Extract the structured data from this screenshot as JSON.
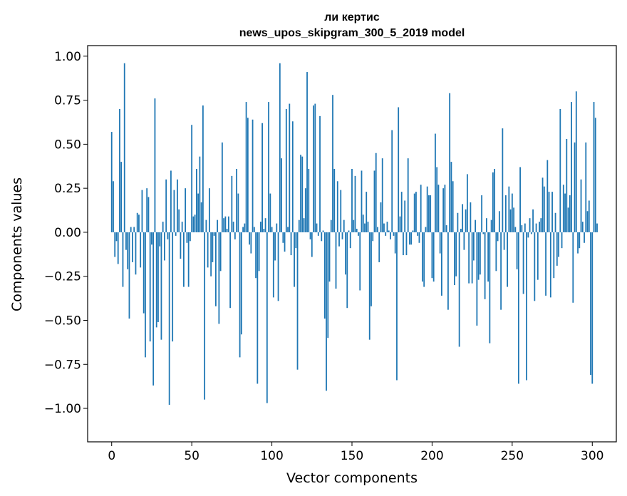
{
  "chart_data": {
    "type": "bar",
    "title": "ли кертис",
    "subtitle": "news_upos_skipgram_300_5_2019 model",
    "xlabel": "Vector components",
    "ylabel": "Components values",
    "xlim": [
      -15,
      315
    ],
    "ylim": [
      -1.19,
      1.06
    ],
    "xticks": [
      0,
      50,
      100,
      150,
      200,
      250,
      300
    ],
    "yticks": [
      -1.0,
      -0.75,
      -0.5,
      -0.25,
      0.0,
      0.25,
      0.5,
      0.75,
      1.0
    ],
    "ytick_labels": [
      "−1.00",
      "−0.75",
      "−0.50",
      "−0.25",
      "0.00",
      "0.25",
      "0.50",
      "0.75",
      "1.00"
    ],
    "grid": false,
    "bar_color": "#1f77b4",
    "values": [
      0.57,
      0.29,
      -0.14,
      -0.05,
      -0.18,
      0.7,
      0.4,
      -0.31,
      0.96,
      -0.1,
      -0.21,
      -0.49,
      0.03,
      -0.17,
      0.03,
      -0.24,
      0.11,
      0.1,
      -0.2,
      0.24,
      -0.46,
      -0.71,
      0.25,
      0.2,
      -0.62,
      -0.07,
      -0.87,
      0.76,
      -0.54,
      -0.51,
      -0.08,
      -0.61,
      0.06,
      -0.16,
      0.3,
      -0.04,
      -0.98,
      0.35,
      -0.62,
      0.24,
      -0.02,
      0.3,
      0.13,
      -0.15,
      0.06,
      -0.31,
      0.25,
      -0.06,
      -0.31,
      -0.05,
      0.61,
      0.09,
      0.1,
      0.36,
      0.22,
      0.43,
      0.17,
      0.72,
      -0.95,
      0.07,
      -0.2,
      0.25,
      -0.25,
      -0.17,
      -0.02,
      -0.42,
      0.07,
      -0.52,
      -0.22,
      0.51,
      0.08,
      0.09,
      0.02,
      0.09,
      -0.43,
      0.32,
      0.06,
      -0.04,
      0.36,
      0.22,
      -0.71,
      -0.58,
      0.03,
      0.05,
      0.74,
      0.65,
      -0.07,
      -0.12,
      0.64,
      0.03,
      -0.26,
      -0.86,
      -0.22,
      0.06,
      0.62,
      0.02,
      0.08,
      -0.97,
      0.74,
      0.22,
      0.03,
      -0.37,
      -0.16,
      0.05,
      -0.39,
      0.96,
      0.42,
      -0.06,
      -0.11,
      0.7,
      0.03,
      0.73,
      -0.13,
      0.63,
      -0.31,
      -0.09,
      -0.78,
      0.07,
      0.44,
      0.43,
      0.08,
      0.25,
      0.91,
      0.36,
      -0.04,
      -0.14,
      0.72,
      0.73,
      0.05,
      -0.02,
      0.66,
      -0.05,
      0.01,
      -0.49,
      -0.9,
      -0.6,
      -0.28,
      0.07,
      0.78,
      0.36,
      -0.32,
      0.29,
      -0.08,
      0.24,
      -0.04,
      0.07,
      -0.24,
      -0.43,
      0.01,
      -0.09,
      0.36,
      0.07,
      0.32,
      0.02,
      -0.02,
      -0.33,
      0.35,
      0.1,
      0.05,
      0.23,
      0.06,
      -0.61,
      -0.42,
      -0.05,
      0.35,
      0.45,
      0.03,
      -0.17,
      0.17,
      0.42,
      0.05,
      -0.02,
      0.06,
      0.01,
      -0.04,
      0.58,
      -0.02,
      -0.12,
      -0.84,
      0.71,
      0.09,
      0.23,
      -0.13,
      0.18,
      -0.13,
      0.42,
      -0.07,
      -0.07,
      0.01,
      0.22,
      0.23,
      -0.02,
      -0.06,
      0.27,
      -0.28,
      -0.31,
      0.03,
      0.26,
      0.21,
      0.21,
      -0.26,
      -0.28,
      0.56,
      0.37,
      0.27,
      -0.12,
      -0.36,
      0.25,
      0.27,
      0.04,
      -0.44,
      0.79,
      0.4,
      0.29,
      -0.3,
      -0.25,
      0.11,
      -0.65,
      0.02,
      0.16,
      -0.1,
      0.13,
      0.33,
      -0.29,
      0.17,
      -0.29,
      -0.16,
      0.07,
      -0.53,
      -0.27,
      -0.24,
      0.21,
      -0.01,
      -0.38,
      0.08,
      -0.28,
      -0.63,
      0.07,
      0.34,
      0.36,
      -0.22,
      -0.05,
      0.12,
      -0.44,
      0.59,
      -0.1,
      0.21,
      -0.31,
      0.26,
      0.13,
      0.22,
      0.14,
      0.03,
      -0.21,
      -0.86,
      0.37,
      0.04,
      -0.35,
      0.05,
      -0.84,
      -0.03,
      0.08,
      -0.01,
      0.13,
      -0.39,
      0.05,
      -0.27,
      0.06,
      0.08,
      0.31,
      0.26,
      -0.36,
      0.41,
      0.23,
      -0.37,
      0.23,
      -0.26,
      0.11,
      -0.19,
      -0.14,
      0.7,
      -0.09,
      0.27,
      0.22,
      0.53,
      0.14,
      0.21,
      0.74,
      -0.4,
      0.51,
      0.8,
      -0.12,
      -0.09,
      0.3,
      0.06,
      -0.06,
      0.51,
      0.12,
      0.18,
      -0.81,
      -0.86,
      0.74,
      0.65,
      0.05
    ]
  }
}
